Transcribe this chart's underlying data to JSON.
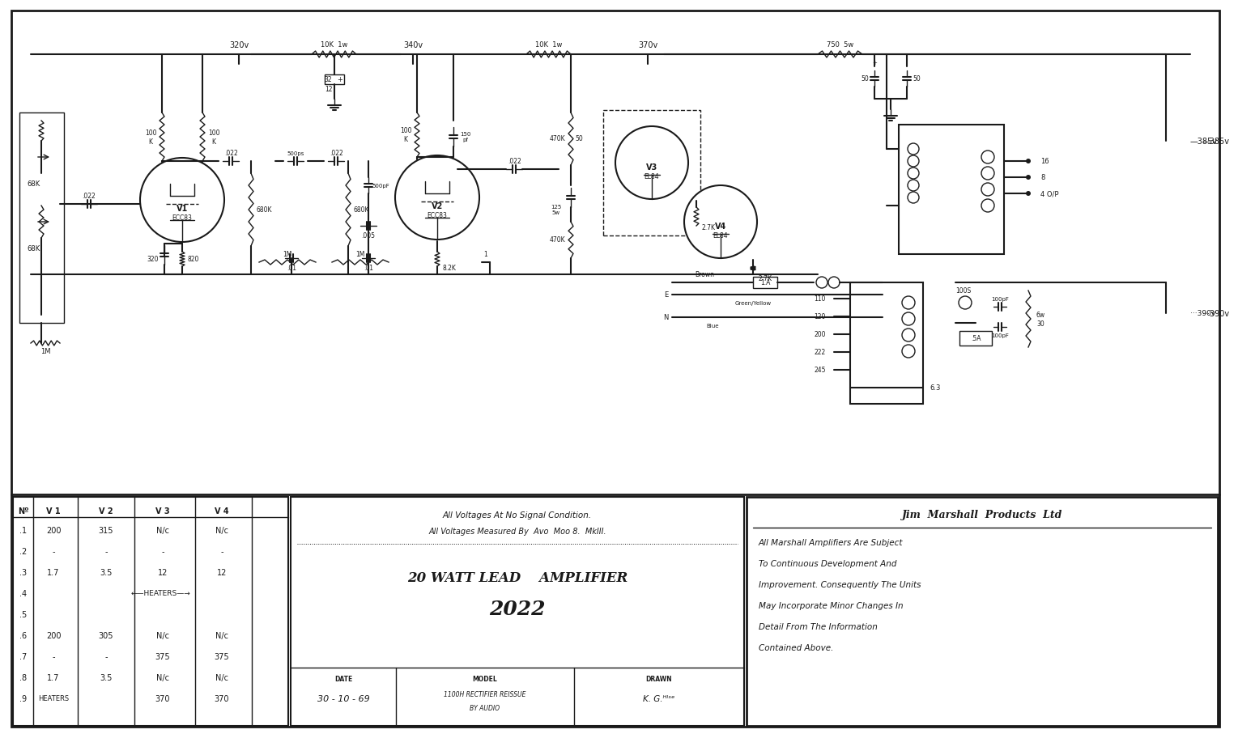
{
  "bg_color": "#ffffff",
  "line_color": "#1a1a1a",
  "fig_width": 15.0,
  "fig_height": 8.93,
  "bottom_table": {
    "col_labels": [
      "Nº",
      "V 1",
      "V 2",
      "V 3",
      "V 4"
    ],
    "row_num": [
      ".1",
      ".2",
      ".3",
      ".4",
      ".5",
      ".6",
      ".7",
      ".8",
      ".9"
    ],
    "v1": [
      "200",
      "-",
      "1.7",
      "",
      "",
      "200",
      "-",
      "1.7",
      ""
    ],
    "v2": [
      "315",
      "-",
      "3.5",
      "",
      "",
      "305",
      "-",
      "3.5",
      ""
    ],
    "v3": [
      "N/c",
      "-",
      "12",
      "",
      "",
      "N/c",
      "375",
      "N/c",
      "370"
    ],
    "v4": [
      "N/c",
      "-",
      "12",
      "",
      "",
      "N/c",
      "375",
      "N/c",
      "370"
    ],
    "heaters_row4": "←—HEATERS—→",
    "heaters_row9": "HEATERS"
  },
  "notes": [
    "All Voltages At No Signal Condition.",
    "All Voltages Measured By  Avo  Moo 8.  MkIII."
  ],
  "amp_title_line1": "20 WATT LEAD    AMPLIFIER",
  "amp_title_line2": "2022",
  "date_label": "DATE",
  "date_value": "30 - 10 - 69",
  "model_label": "MODEL",
  "model_value1": "1100H RECTIFIER REISSUE",
  "model_value2": "BY AUDIO",
  "drawn_label": "DRAWN",
  "drawn_value": "K. G.ᴴᴵˢᵉ",
  "jm_title": "Jim  Marshall  Products  Ltd",
  "jm_body": [
    "All Marshall Amplifiers Are Subject",
    "To Continuous Development And",
    "Improvement. Consequently The Units",
    "May Incorporate Minor Changes In",
    "Detail From The Information",
    "Contained Above."
  ],
  "voltages": {
    "v320": "320v",
    "v340": "340v",
    "v370": "370v",
    "v385": "—385v",
    "v390": "···390v"
  }
}
